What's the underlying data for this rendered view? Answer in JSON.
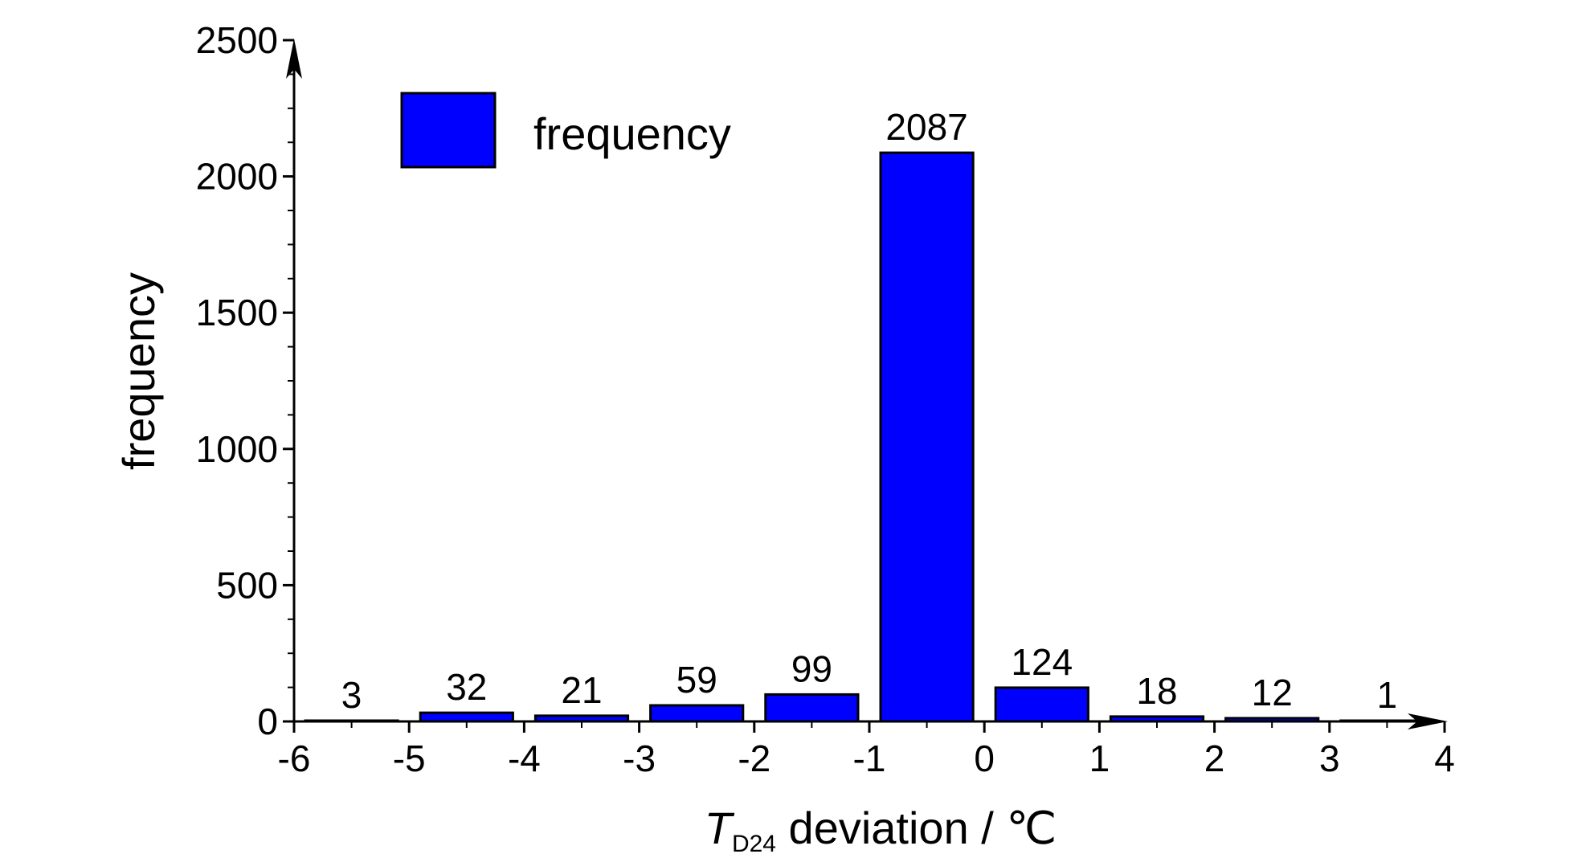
{
  "chart_data": {
    "type": "bar",
    "x_bins": [
      {
        "from": -6,
        "to": -5,
        "value": 3
      },
      {
        "from": -5,
        "to": -4,
        "value": 32
      },
      {
        "from": -4,
        "to": -3,
        "value": 21
      },
      {
        "from": -3,
        "to": -2,
        "value": 59
      },
      {
        "from": -2,
        "to": -1,
        "value": 99
      },
      {
        "from": -1,
        "to": 0,
        "value": 2087
      },
      {
        "from": 0,
        "to": 1,
        "value": 124
      },
      {
        "from": 1,
        "to": 2,
        "value": 18
      },
      {
        "from": 2,
        "to": 3,
        "value": 12
      },
      {
        "from": 3,
        "to": 4,
        "value": 1
      }
    ],
    "data_labels": [
      "3",
      "32",
      "21",
      "59",
      "99",
      "2087",
      "124",
      "18",
      "12",
      "1"
    ],
    "xlabel": {
      "main": "T",
      "subscript": "D24",
      "rest": " deviation / ℃"
    },
    "ylabel": "frequency",
    "xlim": [
      -6,
      4
    ],
    "ylim": [
      0,
      2500
    ],
    "x_ticks": [
      -6,
      -5,
      -4,
      -3,
      -2,
      -1,
      0,
      1,
      2,
      3,
      4
    ],
    "y_ticks": [
      0,
      500,
      1000,
      1500,
      2000,
      2500
    ],
    "legend": {
      "label": "frequency",
      "position": "top-left"
    },
    "bar_color": "#0000ff",
    "bar_edge_color": "#000000",
    "grid": false
  }
}
